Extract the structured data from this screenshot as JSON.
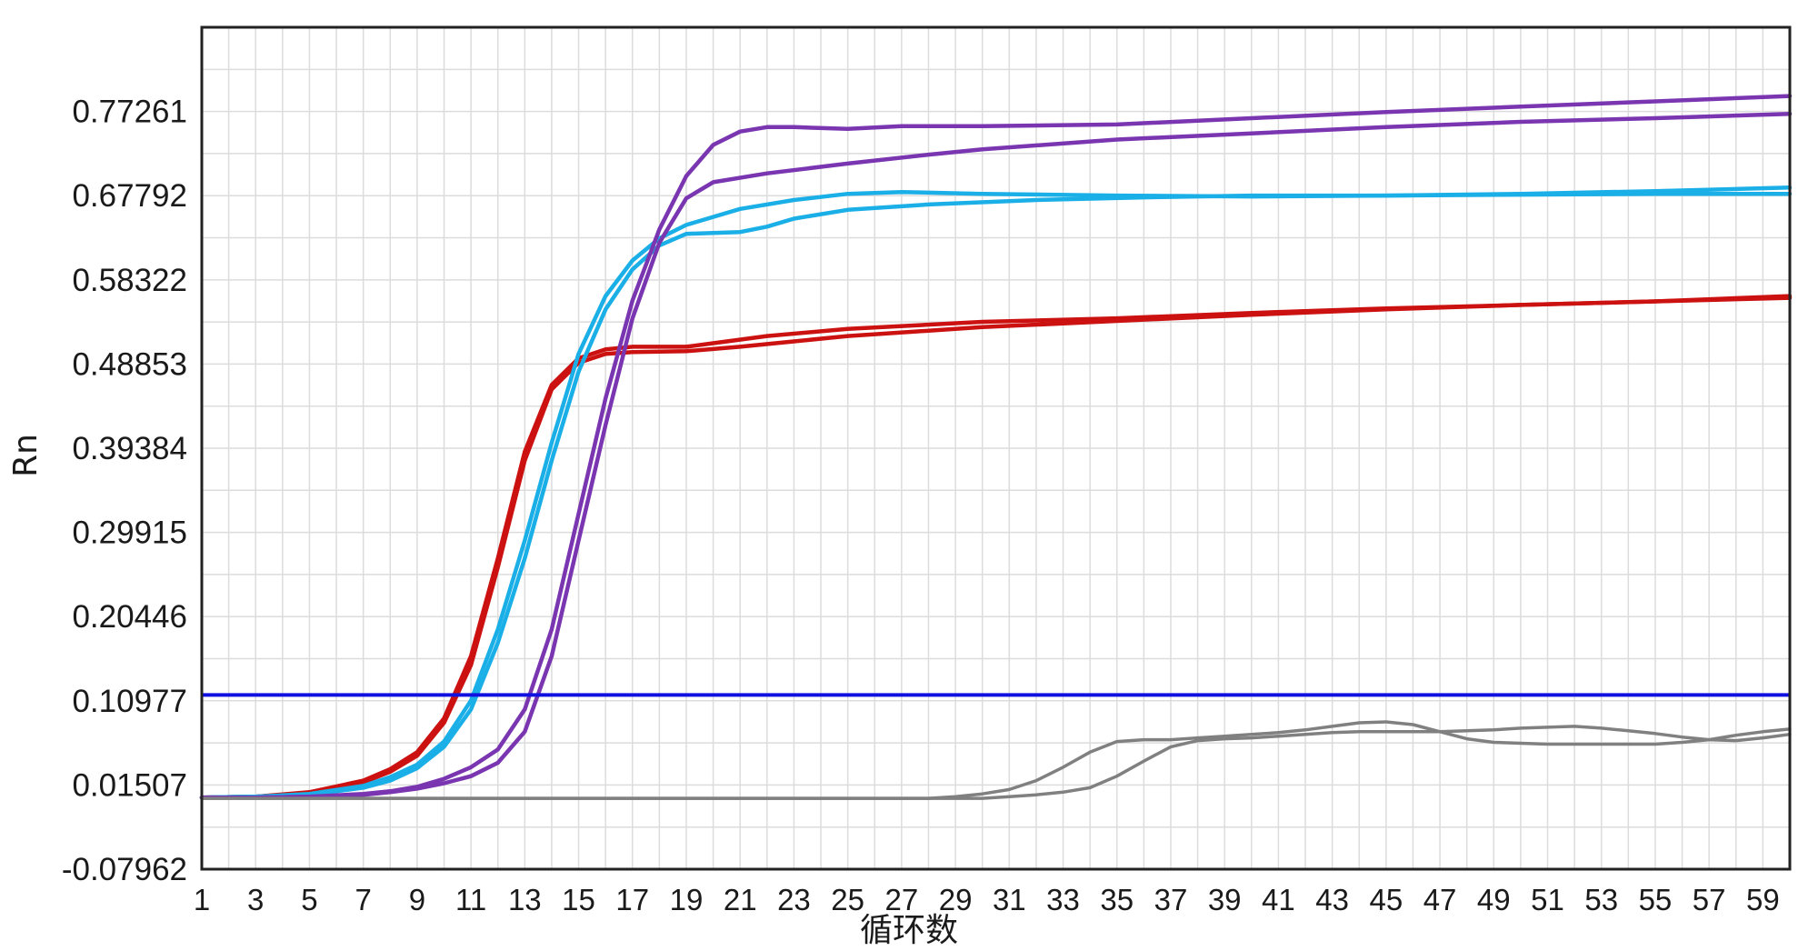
{
  "chart_data": {
    "type": "line",
    "xlabel": "循环数",
    "ylabel": "Rn",
    "xlim": [
      1,
      60
    ],
    "ylim": [
      -0.07962,
      0.8673
    ],
    "x_tick_labels": [
      "1",
      "3",
      "5",
      "7",
      "9",
      "11",
      "13",
      "15",
      "17",
      "19",
      "21",
      "23",
      "25",
      "27",
      "29",
      "31",
      "33",
      "35",
      "37",
      "39",
      "41",
      "43",
      "45",
      "47",
      "49",
      "51",
      "53",
      "55",
      "57",
      "59"
    ],
    "y_tick_labels": [
      "-0.07962",
      "0.01507",
      "0.10977",
      "0.20446",
      "0.29915",
      "0.39384",
      "0.48853",
      "0.58322",
      "0.67792",
      "0.77261"
    ],
    "y_ticks": [
      -0.07962,
      0.01507,
      0.10977,
      0.20446,
      0.29915,
      0.39384,
      0.48853,
      0.58322,
      0.67792,
      0.77261
    ],
    "grid": true,
    "threshold": {
      "y": 0.1163,
      "color": "#1010e0"
    },
    "colors": {
      "red": "#cc1111",
      "cyan": "#1aafe6",
      "purple": "#7a35b0",
      "gray": "#808080",
      "frame": "#222222",
      "grid": "#dcdcdc"
    },
    "series": [
      {
        "color": "red",
        "points": [
          [
            1,
            0.001
          ],
          [
            3,
            0.002
          ],
          [
            5,
            0.007
          ],
          [
            7,
            0.02
          ],
          [
            8,
            0.033
          ],
          [
            9,
            0.052
          ],
          [
            10,
            0.09
          ],
          [
            11,
            0.16
          ],
          [
            12,
            0.27
          ],
          [
            13,
            0.39
          ],
          [
            14,
            0.465
          ],
          [
            15,
            0.495
          ],
          [
            16,
            0.505
          ],
          [
            17,
            0.508
          ],
          [
            19,
            0.508
          ],
          [
            20,
            0.512
          ],
          [
            22,
            0.52
          ],
          [
            25,
            0.528
          ],
          [
            30,
            0.536
          ],
          [
            35,
            0.54
          ],
          [
            40,
            0.546
          ],
          [
            45,
            0.551
          ],
          [
            50,
            0.555
          ],
          [
            55,
            0.559
          ],
          [
            60,
            0.563
          ]
        ]
      },
      {
        "color": "red",
        "points": [
          [
            1,
            0.001
          ],
          [
            3,
            0.002
          ],
          [
            5,
            0.006
          ],
          [
            7,
            0.018
          ],
          [
            8,
            0.03
          ],
          [
            9,
            0.048
          ],
          [
            10,
            0.085
          ],
          [
            11,
            0.15
          ],
          [
            12,
            0.26
          ],
          [
            13,
            0.38
          ],
          [
            14,
            0.46
          ],
          [
            15,
            0.49
          ],
          [
            16,
            0.5
          ],
          [
            17,
            0.502
          ],
          [
            19,
            0.503
          ],
          [
            21,
            0.508
          ],
          [
            23,
            0.514
          ],
          [
            25,
            0.52
          ],
          [
            30,
            0.53
          ],
          [
            35,
            0.537
          ],
          [
            40,
            0.544
          ],
          [
            45,
            0.55
          ],
          [
            50,
            0.555
          ],
          [
            55,
            0.559
          ],
          [
            60,
            0.565
          ]
        ]
      },
      {
        "color": "cyan",
        "points": [
          [
            1,
            0.001
          ],
          [
            3,
            0.002
          ],
          [
            5,
            0.005
          ],
          [
            7,
            0.014
          ],
          [
            8,
            0.024
          ],
          [
            9,
            0.038
          ],
          [
            10,
            0.064
          ],
          [
            11,
            0.11
          ],
          [
            12,
            0.19
          ],
          [
            13,
            0.29
          ],
          [
            14,
            0.4
          ],
          [
            15,
            0.5
          ],
          [
            16,
            0.565
          ],
          [
            17,
            0.605
          ],
          [
            18,
            0.63
          ],
          [
            19,
            0.645
          ],
          [
            21,
            0.663
          ],
          [
            23,
            0.673
          ],
          [
            25,
            0.68
          ],
          [
            27,
            0.682
          ],
          [
            30,
            0.68
          ],
          [
            35,
            0.678
          ],
          [
            40,
            0.677
          ],
          [
            45,
            0.678
          ],
          [
            50,
            0.68
          ],
          [
            55,
            0.683
          ],
          [
            60,
            0.687
          ]
        ]
      },
      {
        "color": "cyan",
        "points": [
          [
            1,
            0.001
          ],
          [
            3,
            0.002
          ],
          [
            5,
            0.004
          ],
          [
            7,
            0.012
          ],
          [
            8,
            0.02
          ],
          [
            9,
            0.034
          ],
          [
            10,
            0.058
          ],
          [
            11,
            0.1
          ],
          [
            12,
            0.175
          ],
          [
            13,
            0.27
          ],
          [
            14,
            0.38
          ],
          [
            15,
            0.48
          ],
          [
            16,
            0.55
          ],
          [
            17,
            0.595
          ],
          [
            18,
            0.622
          ],
          [
            19,
            0.635
          ],
          [
            21,
            0.637
          ],
          [
            22,
            0.643
          ],
          [
            23,
            0.652
          ],
          [
            25,
            0.662
          ],
          [
            28,
            0.668
          ],
          [
            32,
            0.673
          ],
          [
            36,
            0.676
          ],
          [
            40,
            0.678
          ],
          [
            45,
            0.678
          ],
          [
            50,
            0.679
          ],
          [
            55,
            0.68
          ],
          [
            60,
            0.68
          ]
        ]
      },
      {
        "color": "purple",
        "points": [
          [
            1,
            0.001
          ],
          [
            3,
            0.001
          ],
          [
            5,
            0.002
          ],
          [
            7,
            0.005
          ],
          [
            8,
            0.008
          ],
          [
            9,
            0.013
          ],
          [
            10,
            0.022
          ],
          [
            11,
            0.035
          ],
          [
            12,
            0.055
          ],
          [
            13,
            0.1
          ],
          [
            14,
            0.19
          ],
          [
            15,
            0.32
          ],
          [
            16,
            0.45
          ],
          [
            17,
            0.56
          ],
          [
            18,
            0.64
          ],
          [
            19,
            0.7
          ],
          [
            20,
            0.735
          ],
          [
            21,
            0.75
          ],
          [
            22,
            0.755
          ],
          [
            23,
            0.755
          ],
          [
            25,
            0.753
          ],
          [
            27,
            0.756
          ],
          [
            30,
            0.756
          ],
          [
            35,
            0.758
          ],
          [
            40,
            0.765
          ],
          [
            45,
            0.772
          ],
          [
            50,
            0.778
          ],
          [
            55,
            0.784
          ],
          [
            60,
            0.79
          ]
        ]
      },
      {
        "color": "purple",
        "points": [
          [
            1,
            0.001
          ],
          [
            3,
            0.001
          ],
          [
            5,
            0.002
          ],
          [
            7,
            0.004
          ],
          [
            8,
            0.007
          ],
          [
            9,
            0.011
          ],
          [
            10,
            0.017
          ],
          [
            11,
            0.025
          ],
          [
            12,
            0.04
          ],
          [
            13,
            0.075
          ],
          [
            14,
            0.16
          ],
          [
            15,
            0.29
          ],
          [
            16,
            0.42
          ],
          [
            17,
            0.54
          ],
          [
            18,
            0.625
          ],
          [
            19,
            0.675
          ],
          [
            20,
            0.693
          ],
          [
            22,
            0.703
          ],
          [
            25,
            0.714
          ],
          [
            28,
            0.724
          ],
          [
            30,
            0.73
          ],
          [
            35,
            0.741
          ],
          [
            40,
            0.748
          ],
          [
            45,
            0.755
          ],
          [
            50,
            0.761
          ],
          [
            55,
            0.765
          ],
          [
            60,
            0.77
          ]
        ]
      },
      {
        "color": "gray",
        "points": [
          [
            1,
            0.0
          ],
          [
            5,
            0.0
          ],
          [
            10,
            0.0
          ],
          [
            15,
            0.0
          ],
          [
            20,
            0.0
          ],
          [
            25,
            0.0
          ],
          [
            28,
            0.0
          ],
          [
            29,
            0.002
          ],
          [
            30,
            0.005
          ],
          [
            31,
            0.01
          ],
          [
            32,
            0.02
          ],
          [
            33,
            0.035
          ],
          [
            34,
            0.052
          ],
          [
            35,
            0.064
          ],
          [
            36,
            0.066
          ],
          [
            37,
            0.066
          ],
          [
            38,
            0.068
          ],
          [
            39,
            0.07
          ],
          [
            40,
            0.072
          ],
          [
            41,
            0.074
          ],
          [
            42,
            0.077
          ],
          [
            43,
            0.081
          ],
          [
            44,
            0.085
          ],
          [
            45,
            0.086
          ],
          [
            46,
            0.083
          ],
          [
            47,
            0.075
          ],
          [
            48,
            0.067
          ],
          [
            49,
            0.063
          ],
          [
            50,
            0.062
          ],
          [
            51,
            0.061
          ],
          [
            52,
            0.061
          ],
          [
            53,
            0.061
          ],
          [
            54,
            0.061
          ],
          [
            55,
            0.061
          ],
          [
            56,
            0.063
          ],
          [
            57,
            0.066
          ],
          [
            58,
            0.071
          ],
          [
            59,
            0.075
          ],
          [
            60,
            0.078
          ]
        ]
      },
      {
        "color": "gray",
        "points": [
          [
            1,
            0.0
          ],
          [
            5,
            0.0
          ],
          [
            10,
            0.0
          ],
          [
            15,
            0.0
          ],
          [
            20,
            0.0
          ],
          [
            25,
            0.0
          ],
          [
            30,
            0.0
          ],
          [
            31,
            0.002
          ],
          [
            32,
            0.004
          ],
          [
            33,
            0.007
          ],
          [
            34,
            0.012
          ],
          [
            35,
            0.025
          ],
          [
            36,
            0.042
          ],
          [
            37,
            0.058
          ],
          [
            38,
            0.065
          ],
          [
            39,
            0.067
          ],
          [
            40,
            0.068
          ],
          [
            41,
            0.07
          ],
          [
            42,
            0.072
          ],
          [
            43,
            0.074
          ],
          [
            44,
            0.075
          ],
          [
            45,
            0.075
          ],
          [
            46,
            0.075
          ],
          [
            47,
            0.075
          ],
          [
            48,
            0.076
          ],
          [
            49,
            0.077
          ],
          [
            50,
            0.079
          ],
          [
            51,
            0.08
          ],
          [
            52,
            0.081
          ],
          [
            53,
            0.079
          ],
          [
            54,
            0.076
          ],
          [
            55,
            0.073
          ],
          [
            56,
            0.069
          ],
          [
            57,
            0.066
          ],
          [
            58,
            0.065
          ],
          [
            59,
            0.068
          ],
          [
            60,
            0.072
          ]
        ]
      }
    ]
  }
}
